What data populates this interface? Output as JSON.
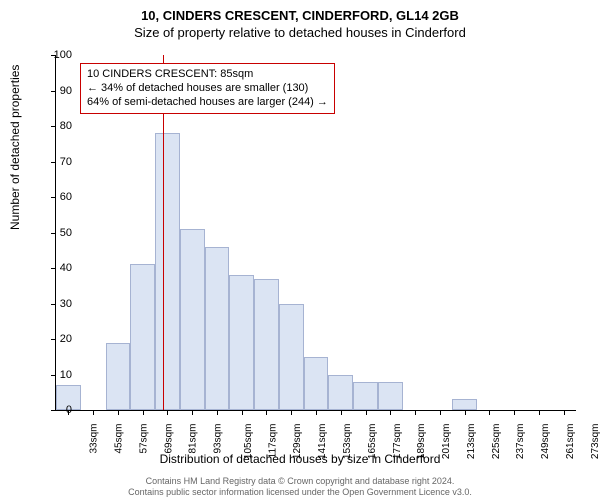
{
  "title": "10, CINDERS CRESCENT, CINDERFORD, GL14 2GB",
  "subtitle": "Size of property relative to detached houses in Cinderford",
  "ylabel": "Number of detached properties",
  "xlabel": "Distribution of detached houses by size in Cinderford",
  "chart": {
    "type": "histogram",
    "ylim": [
      0,
      100
    ],
    "ytick_step": 10,
    "bar_fill": "#dbe4f3",
    "bar_border": "rgba(70,90,150,0.35)",
    "background": "#ffffff",
    "x_start": 33,
    "x_step": 12,
    "x_count": 21,
    "x_unit": "sqm",
    "values": [
      7,
      0,
      19,
      41,
      78,
      51,
      46,
      38,
      37,
      30,
      15,
      10,
      8,
      8,
      0,
      0,
      3,
      0,
      0,
      0,
      0
    ],
    "reference_line": {
      "x_value": 85,
      "color": "#c80000",
      "width": 1
    },
    "annotation": {
      "border_color": "#c80000",
      "bg": "#ffffff",
      "fontsize": 11,
      "line1": "10 CINDERS CRESCENT: 85sqm",
      "line2": "← 34% of detached houses are smaller (130)",
      "line3": "64% of semi-detached houses are larger (244) →"
    }
  },
  "footer_line1": "Contains HM Land Registry data © Crown copyright and database right 2024.",
  "footer_line2": "Contains public sector information licensed under the Open Government Licence v3.0."
}
